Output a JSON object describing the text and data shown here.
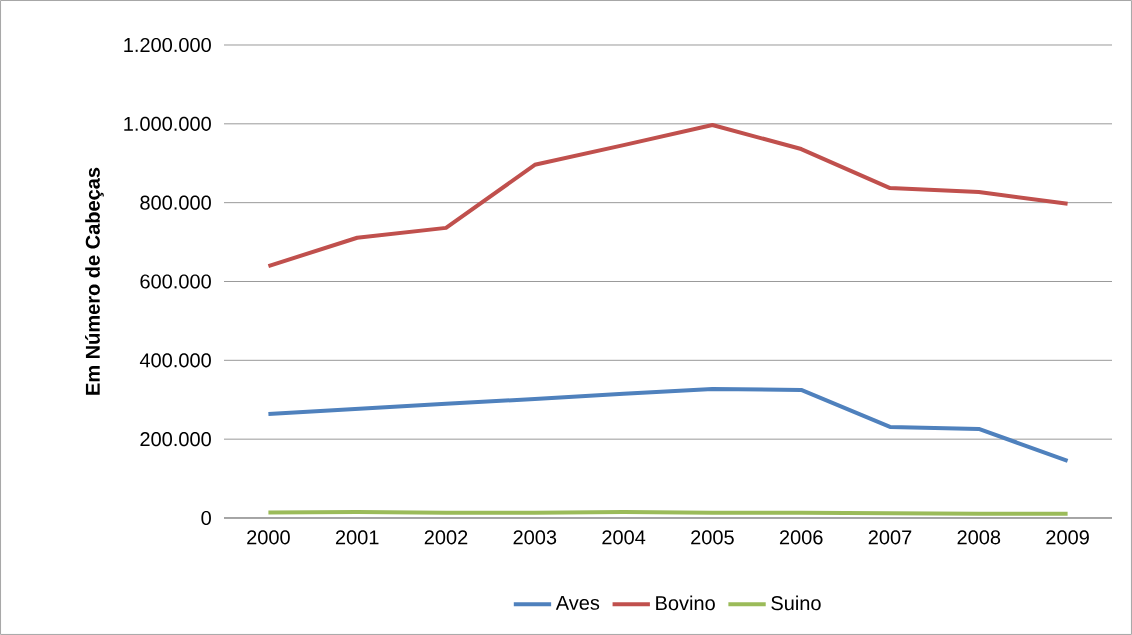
{
  "chart_data": {
    "type": "line",
    "ylabel": "Em Número de Cabeças",
    "categories": [
      "2000",
      "2001",
      "2002",
      "2003",
      "2004",
      "2005",
      "2006",
      "2007",
      "2008",
      "2009"
    ],
    "series": [
      {
        "name": "Aves",
        "color": "#4f81bd",
        "values": [
          264000,
          277000,
          290000,
          302000,
          315000,
          327000,
          325000,
          231000,
          226000,
          145000
        ]
      },
      {
        "name": "Bovino",
        "color": "#c0504d",
        "values": [
          639000,
          711000,
          736000,
          896000,
          946000,
          997000,
          936000,
          837000,
          827000,
          797000
        ]
      },
      {
        "name": "Suino",
        "color": "#9bbb59",
        "values": [
          14000,
          15000,
          13000,
          13000,
          15000,
          13000,
          13000,
          12000,
          11000,
          11000
        ]
      }
    ],
    "ylim": [
      0,
      1200000
    ],
    "yticks": [
      0,
      {
        "value": 200000,
        "label": "200.000"
      },
      {
        "value": 400000,
        "label": "400.000"
      },
      {
        "value": 600000,
        "label": "600.000"
      },
      {
        "value": 800000,
        "label": "800.000"
      },
      {
        "value": 1000000,
        "label": "1.000.000"
      },
      {
        "value": 1200000,
        "label": "1.200.000"
      }
    ],
    "grid": "y",
    "legend": "bottom",
    "marker": "none",
    "line_style": "solid"
  }
}
